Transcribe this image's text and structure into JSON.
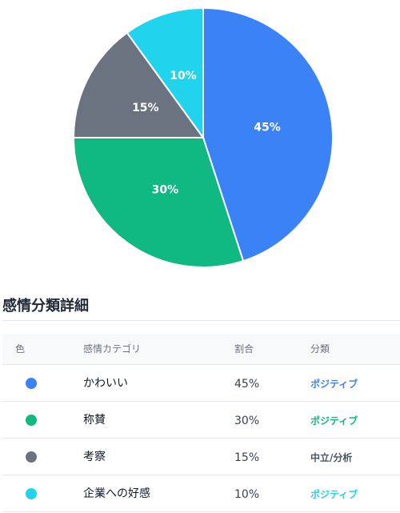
{
  "chart_data": {
    "type": "pie",
    "title": "",
    "categories": [
      "かわいい",
      "称賛",
      "考察",
      "企業への好感"
    ],
    "values": [
      45,
      30,
      15,
      10
    ],
    "labels": [
      "45%",
      "30%",
      "15%",
      "10%"
    ],
    "colors": [
      "#3b82f6",
      "#10b981",
      "#6b7280",
      "#22d3ee"
    ]
  },
  "details": {
    "title": "感情分類詳細",
    "headers": {
      "color": "色",
      "category": "感情カテゴリ",
      "ratio": "割合",
      "class": "分類"
    },
    "rows": [
      {
        "color": "#3b82f6",
        "category": "かわいい",
        "ratio": "45%",
        "class": "ポジティブ",
        "class_color": "#3b82f6"
      },
      {
        "color": "#10b981",
        "category": "称賛",
        "ratio": "30%",
        "class": "ポジティブ",
        "class_color": "#10b981"
      },
      {
        "color": "#6b7280",
        "category": "考察",
        "ratio": "15%",
        "class": "中立/分析",
        "class_color": "#4b5563"
      },
      {
        "color": "#22d3ee",
        "category": "企業への好感",
        "ratio": "10%",
        "class": "ポジティブ",
        "class_color": "#22d3ee"
      }
    ]
  }
}
